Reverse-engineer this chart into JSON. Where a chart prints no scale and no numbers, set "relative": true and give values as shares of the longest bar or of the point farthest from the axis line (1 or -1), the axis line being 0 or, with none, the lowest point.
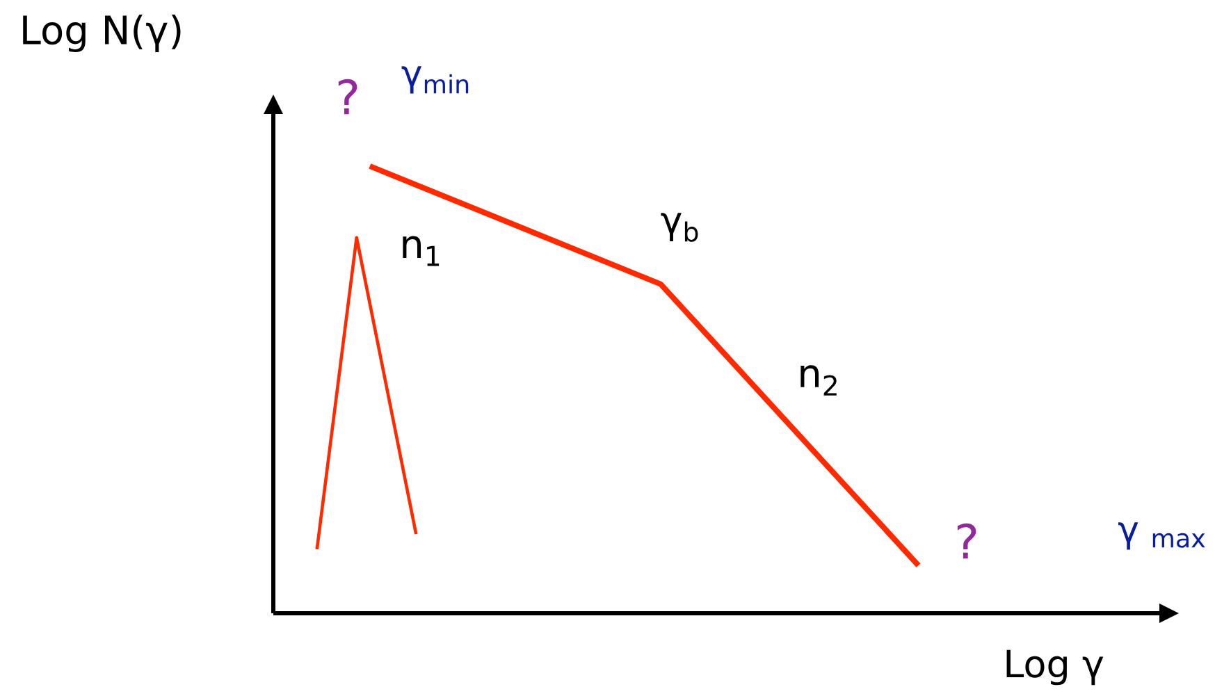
{
  "chart_data": {
    "type": "line",
    "relative": true,
    "xlabel": "Log γ",
    "ylabel": "Log N(γ)",
    "categories": [
      null,
      null,
      null,
      null,
      null,
      null,
      null,
      null,
      null,
      null,
      null,
      null,
      null,
      null,
      null,
      null,
      null,
      null,
      null,
      null,
      null,
      null,
      null,
      null,
      null,
      null,
      null,
      null,
      null,
      null,
      null,
      null,
      null,
      null,
      null,
      null,
      null,
      null,
      null,
      null,
      null,
      null,
      null,
      null,
      null,
      null,
      null,
      null,
      null,
      null,
      null,
      null,
      null,
      null,
      null,
      null,
      null,
      null,
      null,
      null,
      null,
      null,
      null,
      null,
      null,
      null,
      null,
      null,
      null,
      null,
      null,
      null,
      null,
      null,
      null,
      null,
      null,
      null,
      null,
      null,
      null,
      null,
      null,
      null,
      null,
      null,
      null,
      null,
      null,
      null,
      null,
      null,
      null,
      null,
      null,
      null,
      null,
      null,
      null,
      null,
      null,
      null,
      null,
      null,
      null,
      null,
      null,
      null,
      null,
      null,
      null,
      null,
      null,
      null,
      null,
      null,
      null,
      null,
      null,
      null,
      null,
      null,
      null,
      null,
      null,
      null,
      null,
      null,
      null,
      null,
      null,
      null,
      null,
      null,
      null,
      null,
      null
    ],
    "series": [
      {
        "color": "#ff2a00",
        "values": [
          null,
          null,
          null,
          null,
          null,
          null,
          null,
          null,
          null,
          null,
          null,
          null,
          null,
          null,
          1,
          null,
          null,
          null,
          null,
          null,
          null,
          null,
          null,
          null,
          null,
          null,
          null,
          null,
          null,
          null,
          null,
          null,
          null,
          null,
          null,
          null,
          null,
          null,
          null,
          null,
          null,
          null,
          null,
          null,
          null,
          null,
          null,
          null,
          null,
          null,
          null,
          null,
          null,
          null,
          null,
          null,
          null,
          null,
          0.736,
          null,
          null,
          null,
          null,
          null,
          null,
          null,
          null,
          null,
          null,
          null,
          null,
          null,
          null,
          null,
          null,
          null,
          null,
          null,
          null,
          null,
          null,
          null,
          null,
          null,
          null,
          null,
          null,
          null,
          null,
          null,
          null,
          null,
          null,
          null,
          null,
          null,
          null,
          0.107,
          null,
          null,
          null,
          null,
          null,
          null,
          null,
          null,
          null,
          null,
          null,
          null,
          null,
          null,
          null,
          null,
          null,
          null,
          null,
          null,
          null,
          null,
          null,
          null,
          null,
          null,
          null,
          null,
          null,
          null,
          null,
          null,
          null,
          null,
          null,
          null,
          null,
          null,
          null
        ]
      },
      {
        "color": "#ff2a00",
        "values": [
          null,
          null,
          null,
          null,
          null,
          null,
          0.143,
          null,
          null,
          null,
          null,
          null,
          0.84,
          null,
          null,
          null,
          null,
          null,
          null,
          null,
          null,
          0.177,
          null,
          null,
          null,
          null,
          null,
          null,
          null,
          null,
          null,
          null,
          null,
          null,
          null,
          null,
          null,
          null,
          null,
          null,
          null,
          null,
          null,
          null,
          null,
          null,
          null,
          null,
          null,
          null,
          null,
          null,
          null,
          null,
          null,
          null,
          null,
          null,
          null,
          null,
          null,
          null,
          null,
          null,
          null,
          null,
          null,
          null,
          null,
          null,
          null,
          null,
          null,
          null,
          null,
          null,
          null,
          null,
          null,
          null,
          null,
          null,
          null,
          null,
          null,
          null,
          null,
          null,
          null,
          null,
          null,
          null,
          null,
          null,
          null,
          null,
          null,
          null,
          null,
          null,
          null,
          null,
          null,
          null,
          null,
          null,
          null,
          null,
          null,
          null,
          null,
          null,
          null,
          null,
          null,
          null,
          null,
          null,
          null,
          null,
          null,
          null,
          null,
          null,
          null,
          null,
          null,
          null,
          null,
          null,
          null,
          null,
          null,
          null,
          null,
          null,
          null
        ]
      }
    ],
    "annotations": [
      "?",
      "γ$_{min}$",
      "n$_{1}$",
      "γ$_{b}$",
      "n$_{2}$",
      "?",
      "γ $_{max}$"
    ]
  }
}
